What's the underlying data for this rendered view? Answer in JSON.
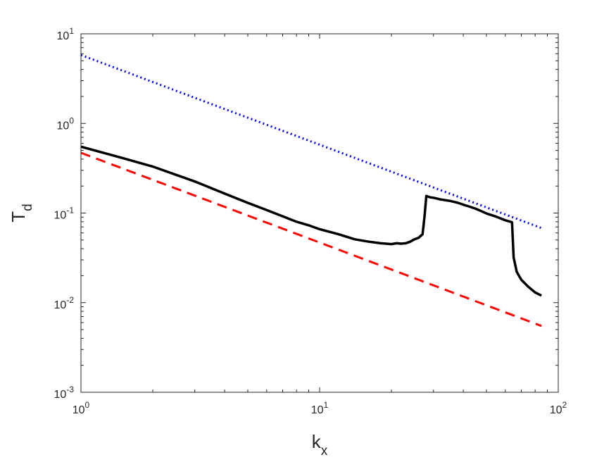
{
  "chart_data": {
    "type": "line",
    "xscale": "log",
    "yscale": "log",
    "xlim": [
      1,
      100
    ],
    "ylim": [
      0.001,
      10
    ],
    "xlabel": {
      "base": "k",
      "sub": "x"
    },
    "ylabel": {
      "base": "T",
      "sub": "d"
    },
    "x_ticks": [
      {
        "value": 1,
        "base": "10",
        "exp": "0"
      },
      {
        "value": 10,
        "base": "10",
        "exp": "1"
      },
      {
        "value": 100,
        "base": "10",
        "exp": "2"
      }
    ],
    "y_ticks": [
      {
        "value": 0.001,
        "base": "10",
        "exp": "-3"
      },
      {
        "value": 0.01,
        "base": "10",
        "exp": "-2"
      },
      {
        "value": 0.1,
        "base": "10",
        "exp": "-1"
      },
      {
        "value": 1,
        "base": "10",
        "exp": "0"
      },
      {
        "value": 10,
        "base": "10",
        "exp": "1"
      }
    ],
    "grid": false,
    "box": true,
    "series": [
      {
        "style": "dotted",
        "color": "#0000ff",
        "x": [
          1,
          85
        ],
        "y": [
          5.8,
          0.068
        ]
      },
      {
        "style": "solid",
        "color": "#000000",
        "x": [
          1,
          1.5,
          2,
          3,
          4,
          5,
          6,
          7,
          8,
          9,
          10,
          12,
          14,
          16,
          18,
          20,
          21,
          22,
          23,
          24,
          25,
          26,
          27,
          27.5,
          28,
          29,
          30,
          31,
          32,
          35,
          38,
          40,
          42,
          45,
          48,
          50,
          55,
          60,
          62,
          63,
          64,
          65,
          67,
          70,
          75,
          80,
          85
        ],
        "y": [
          0.55,
          0.41,
          0.33,
          0.225,
          0.165,
          0.13,
          0.108,
          0.092,
          0.08,
          0.073,
          0.066,
          0.058,
          0.051,
          0.048,
          0.046,
          0.045,
          0.046,
          0.0455,
          0.046,
          0.048,
          0.051,
          0.053,
          0.058,
          0.09,
          0.155,
          0.15,
          0.148,
          0.145,
          0.142,
          0.137,
          0.13,
          0.124,
          0.119,
          0.112,
          0.104,
          0.099,
          0.091,
          0.083,
          0.081,
          0.08,
          0.079,
          0.032,
          0.022,
          0.018,
          0.015,
          0.013,
          0.012
        ]
      },
      {
        "style": "dashed",
        "color": "#ff0000",
        "x": [
          1,
          85
        ],
        "y": [
          0.47,
          0.0055
        ]
      }
    ]
  }
}
